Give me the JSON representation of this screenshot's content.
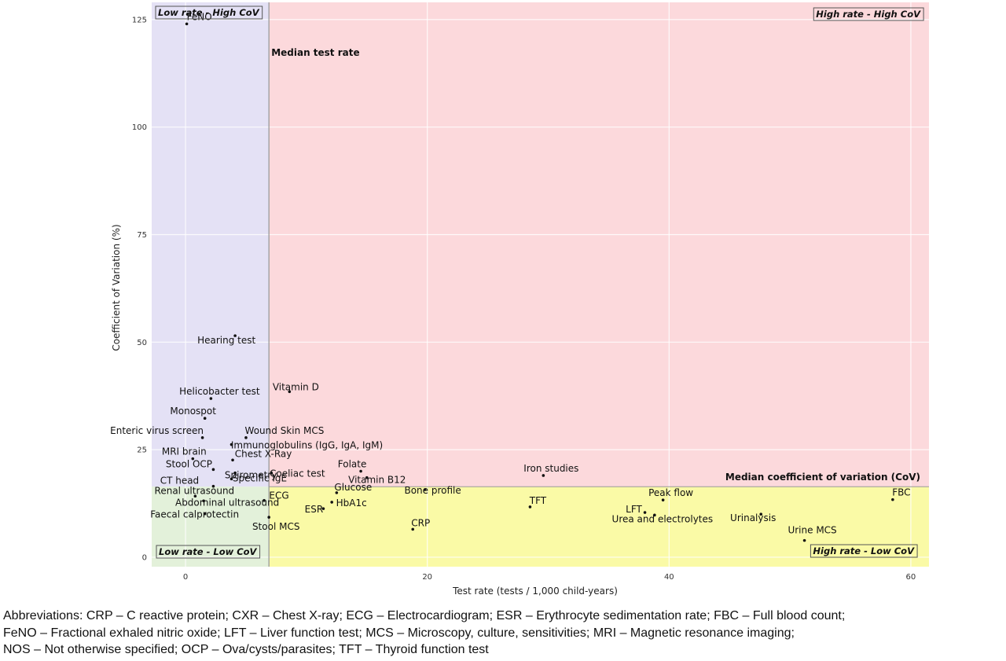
{
  "chart_data": {
    "type": "scatter",
    "xlabel": "Test rate (tests / 1,000 child-years)",
    "ylabel": "Coefficient of Variation (%)",
    "xlim": [
      -2.8,
      61.5
    ],
    "ylim": [
      -2.2,
      129
    ],
    "x_ticks": [
      0,
      20,
      40,
      60
    ],
    "y_ticks": [
      0,
      25,
      50,
      75,
      100,
      125
    ],
    "grid": true,
    "median_test_rate": 6.9,
    "median_cov": 16.4,
    "quadrant_colors": {
      "low_rate_high_cov": "#e4e1f5",
      "high_rate_high_cov": "#fcd9dc",
      "low_rate_low_cov": "#e3f1da",
      "high_rate_low_cov": "#fafaa6"
    },
    "quadrant_labels": {
      "top_left": "Low rate - High CoV",
      "top_right": "High rate - High CoV",
      "bottom_left": "Low rate - Low CoV",
      "bottom_right": "High rate - Low CoV"
    },
    "median_rate_label": "Median test rate",
    "median_cov_label": "Median coefficient of variation (CoV)",
    "points": [
      {
        "label": "FeNO",
        "x": 0.1,
        "y": 124.0
      },
      {
        "label": "Hearing test",
        "x": 4.1,
        "y": 51.5
      },
      {
        "label": "Vitamin D",
        "x": 8.6,
        "y": 38.5
      },
      {
        "label": "Helicobacter test",
        "x": 2.1,
        "y": 36.9
      },
      {
        "label": "Monospot",
        "x": 1.6,
        "y": 32.3
      },
      {
        "label": "Enteric virus screen",
        "x": 1.4,
        "y": 27.8
      },
      {
        "label": "Wound Skin MCS",
        "x": 5.0,
        "y": 27.8
      },
      {
        "label": "Immunoglobulins (IgG, IgA, IgM)",
        "x": 3.8,
        "y": 26.2
      },
      {
        "label": "MRI brain",
        "x": 0.6,
        "y": 22.9
      },
      {
        "label": "Chest X-Ray",
        "x": 3.9,
        "y": 22.6
      },
      {
        "label": "Stool OCP",
        "x": 2.3,
        "y": 20.4
      },
      {
        "label": "Spirometry",
        "x": 4.1,
        "y": 19.6
      },
      {
        "label": "Coeliac test",
        "x": 7.1,
        "y": 19.6
      },
      {
        "label": "Folate",
        "x": 14.5,
        "y": 20.0
      },
      {
        "label": "Specific IgE",
        "x": 3.8,
        "y": 18.2
      },
      {
        "label": "Vitamin B12",
        "x": 15.0,
        "y": 18.5
      },
      {
        "label": "Iron studies",
        "x": 29.6,
        "y": 19.0
      },
      {
        "label": "CT head",
        "x": 2.3,
        "y": 16.5
      },
      {
        "label": "Renal ultrasound",
        "x": 0.8,
        "y": 14.2
      },
      {
        "label": "ECG",
        "x": 6.5,
        "y": 13.2
      },
      {
        "label": "Glucose",
        "x": 12.5,
        "y": 15.0
      },
      {
        "label": "Bone profile",
        "x": 19.8,
        "y": 15.7
      },
      {
        "label": "Abdominal ultrasound",
        "x": 1.5,
        "y": 13.1
      },
      {
        "label": "HbA1c",
        "x": 12.1,
        "y": 12.8
      },
      {
        "label": "TFT",
        "x": 28.5,
        "y": 11.7
      },
      {
        "label": "Peak flow",
        "x": 39.5,
        "y": 13.3
      },
      {
        "label": "FBC",
        "x": 58.5,
        "y": 13.4
      },
      {
        "label": "LFT",
        "x": 38.0,
        "y": 10.4
      },
      {
        "label": "ESR",
        "x": 11.4,
        "y": 11.3
      },
      {
        "label": "Faecal calprotectin",
        "x": 1.6,
        "y": 10.1
      },
      {
        "label": "Urea and electrolytes",
        "x": 38.8,
        "y": 9.8
      },
      {
        "label": "Urinalysis",
        "x": 47.6,
        "y": 10.0
      },
      {
        "label": "Stool MCS",
        "x": 6.9,
        "y": 9.3
      },
      {
        "label": "CRP",
        "x": 18.8,
        "y": 6.5
      },
      {
        "label": "Urine MCS",
        "x": 51.2,
        "y": 3.9
      }
    ]
  },
  "footnote": {
    "line1": "Abbreviations: CRP – C reactive protein; CXR – Chest X-ray; ECG – Electrocardiogram; ESR – Erythrocyte sedimentation rate; FBC – Full blood count;",
    "line2": "FeNO – Fractional exhaled nitric oxide; LFT – Liver function test; MCS – Microscopy, culture, sensitivities; MRI – Magnetic resonance imaging;",
    "line3": "NOS – Not otherwise specified; OCP – Ova/cysts/parasites; TFT – Thyroid function test"
  }
}
